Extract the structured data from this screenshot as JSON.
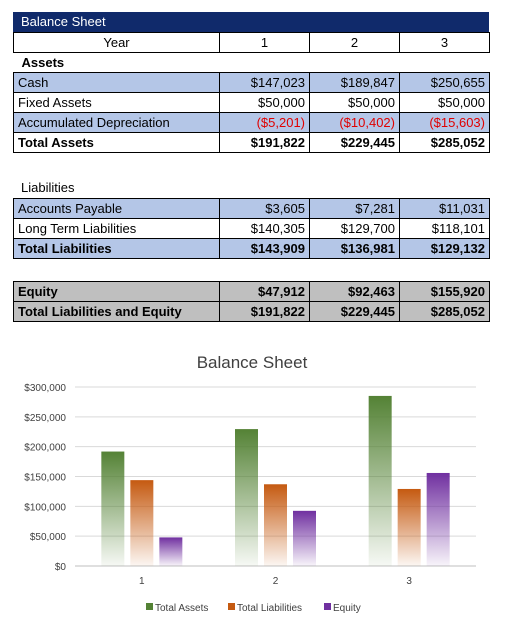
{
  "sheet_title": "Balance Sheet",
  "header": {
    "label": "Year",
    "years": [
      "1",
      "2",
      "3"
    ]
  },
  "assets": {
    "section_label": "Assets",
    "rows": [
      {
        "label": "Cash",
        "values": [
          "$147,023",
          "$189,847",
          "$250,655"
        ],
        "negative": false
      },
      {
        "label": "Fixed Assets",
        "values": [
          "$50,000",
          "$50,000",
          "$50,000"
        ],
        "negative": false
      },
      {
        "label": "Accumulated Depreciation",
        "values": [
          "($5,201)",
          "($10,402)",
          "($15,603)"
        ],
        "negative": true
      }
    ],
    "total": {
      "label": "Total Assets",
      "values": [
        "$191,822",
        "$229,445",
        "$285,052"
      ]
    }
  },
  "liabilities": {
    "section_label": "Liabilities",
    "rows": [
      {
        "label": "Accounts Payable",
        "values": [
          "$3,605",
          "$7,281",
          "$11,031"
        ]
      },
      {
        "label": "Long Term Liabilities",
        "values": [
          "$140,305",
          "$129,700",
          "$118,101"
        ]
      }
    ],
    "total": {
      "label": "Total Liabilities",
      "values": [
        "$143,909",
        "$136,981",
        "$129,132"
      ]
    }
  },
  "equity": {
    "row": {
      "label": "Equity",
      "values": [
        "$47,912",
        "$92,463",
        "$155,920"
      ]
    },
    "total": {
      "label": "Total Liabilities and Equity",
      "values": [
        "$191,822",
        "$229,445",
        "$285,052"
      ]
    }
  },
  "colors": {
    "title_bar": "#102a6b",
    "blue_row": "#b4c6e7",
    "gray_row": "#bfbfbf",
    "negative": "#e00000"
  },
  "chart_data": {
    "type": "bar",
    "title": "Balance Sheet",
    "categories": [
      "1",
      "2",
      "3"
    ],
    "series": [
      {
        "name": "Total Assets",
        "values": [
          191822,
          229445,
          285052
        ],
        "color": "#548235"
      },
      {
        "name": "Total Liabilities",
        "values": [
          143909,
          136981,
          129132
        ],
        "color": "#c55a11"
      },
      {
        "name": "Equity",
        "values": [
          47912,
          92463,
          155920
        ],
        "color": "#7030a0"
      }
    ],
    "ylim": [
      0,
      300000
    ],
    "yticks": [
      "$0",
      "$50,000",
      "$100,000",
      "$150,000",
      "$200,000",
      "$250,000",
      "$300,000"
    ],
    "grid": true,
    "legend": "bottom"
  }
}
